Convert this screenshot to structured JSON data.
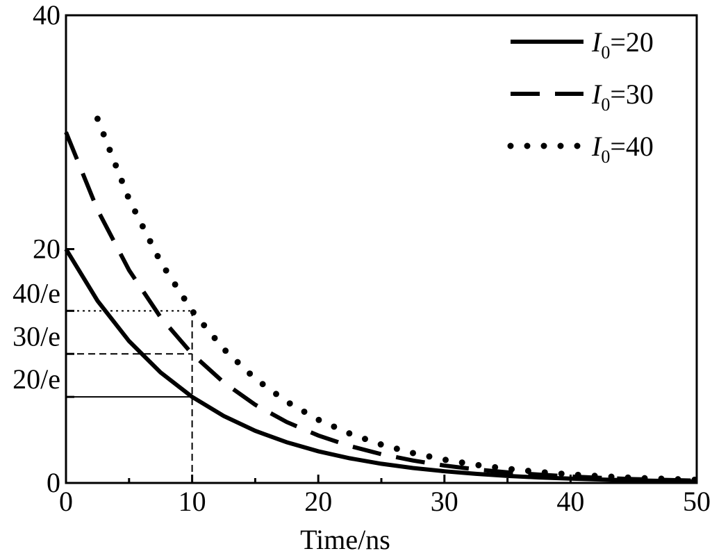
{
  "chart_data": {
    "type": "line",
    "x_label": "Time/ns",
    "x": [
      0,
      2.5,
      5,
      7.5,
      10,
      12.5,
      15,
      17.5,
      20,
      22.5,
      25,
      27.5,
      30,
      32.5,
      35,
      37.5,
      40,
      42.5,
      45,
      47.5,
      50
    ],
    "series": [
      {
        "name": "I0=20",
        "color": "#000000",
        "dash": "solid",
        "values": [
          20,
          15.58,
          12.13,
          9.45,
          7.36,
          5.73,
          4.46,
          3.48,
          2.71,
          2.11,
          1.64,
          1.28,
          1.0,
          0.78,
          0.6,
          0.47,
          0.37,
          0.29,
          0.22,
          0.17,
          0.13
        ]
      },
      {
        "name": "I0=30",
        "color": "#000000",
        "dash": "dashed",
        "values": [
          30,
          23.36,
          18.2,
          14.17,
          11.04,
          8.6,
          6.69,
          5.21,
          4.06,
          3.16,
          2.46,
          1.92,
          1.49,
          1.16,
          0.91,
          0.71,
          0.55,
          0.43,
          0.33,
          0.26,
          0.2
        ]
      },
      {
        "name": "I0=40",
        "color": "#000000",
        "dash": "dotted",
        "values": [
          null,
          31.15,
          24.26,
          18.9,
          14.72,
          11.46,
          8.92,
          6.95,
          5.41,
          4.22,
          3.28,
          2.56,
          1.99,
          1.55,
          1.21,
          0.94,
          0.73,
          0.57,
          0.44,
          0.35,
          0.27
        ]
      }
    ],
    "xlim": [
      0,
      50
    ],
    "xticks": [
      0,
      10,
      20,
      30,
      40,
      50
    ],
    "xminorticks": [
      5,
      15,
      25,
      35,
      45
    ],
    "ylim": [
      0,
      40
    ],
    "yticks": [
      0,
      20,
      40,
      {
        "value": 7.36,
        "label": "20/e"
      },
      {
        "value": 11.04,
        "label": "30/e"
      },
      {
        "value": 14.72,
        "label": "40/e"
      }
    ],
    "reference_lines": [
      {
        "y": 7.36,
        "x_end": 10,
        "dash": "solid"
      },
      {
        "y": 11.04,
        "x_end": 10,
        "dash": "dashed"
      },
      {
        "y": 14.72,
        "x_end": 10,
        "dash": "dotted"
      },
      {
        "x": 10,
        "y_end": 14.72,
        "dash": "dashed"
      }
    ],
    "legend": "upper right"
  }
}
